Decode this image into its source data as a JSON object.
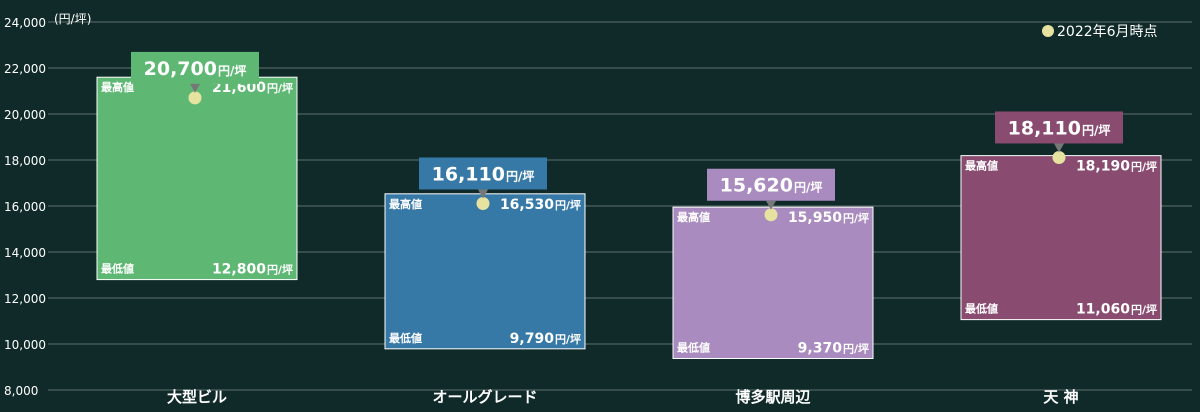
{
  "chart_data": {
    "type": "range-bar",
    "unit_label": "(円/坪)",
    "legend": "2022年6月時点",
    "ylim": [
      8000,
      24000
    ],
    "yticks": [
      8000,
      10000,
      12000,
      14000,
      16000,
      18000,
      20000,
      22000,
      24000
    ],
    "ytick_labels": [
      "8,000",
      "10,000",
      "12,000",
      "14,000",
      "16,000",
      "18,000",
      "20,000",
      "22,000",
      "24,000"
    ],
    "grid": true,
    "max_label": "最高値",
    "min_label": "最低値",
    "unit_suffix": "円/坪",
    "series": [
      {
        "category": "大型ビル",
        "min": 12800,
        "max": 21600,
        "current": 20700,
        "min_text": "12,800",
        "max_text": "21,600",
        "current_text": "20,700",
        "color": "#5eb874",
        "callout_color": "#5eb874"
      },
      {
        "category": "オールグレード",
        "min": 9790,
        "max": 16530,
        "current": 16110,
        "min_text": "9,790",
        "max_text": "16,530",
        "current_text": "16,110",
        "color": "#3779a6",
        "callout_color": "#3779a6"
      },
      {
        "category": "博多駅周辺",
        "min": 9370,
        "max": 15950,
        "current": 15620,
        "min_text": "9,370",
        "max_text": "15,950",
        "current_text": "15,620",
        "color": "#a98bbf",
        "callout_color": "#a98bbf"
      },
      {
        "category": "天 神",
        "min": 11060,
        "max": 18190,
        "current": 18110,
        "min_text": "11,060",
        "max_text": "18,190",
        "current_text": "18,110",
        "color": "#8a4b70",
        "callout_color": "#8a4b70"
      }
    ],
    "colors": {
      "background": "#0f2a28",
      "grid": "#5e706e",
      "dot": "#e6e3a0",
      "bar_edge": "#ffffff"
    }
  }
}
